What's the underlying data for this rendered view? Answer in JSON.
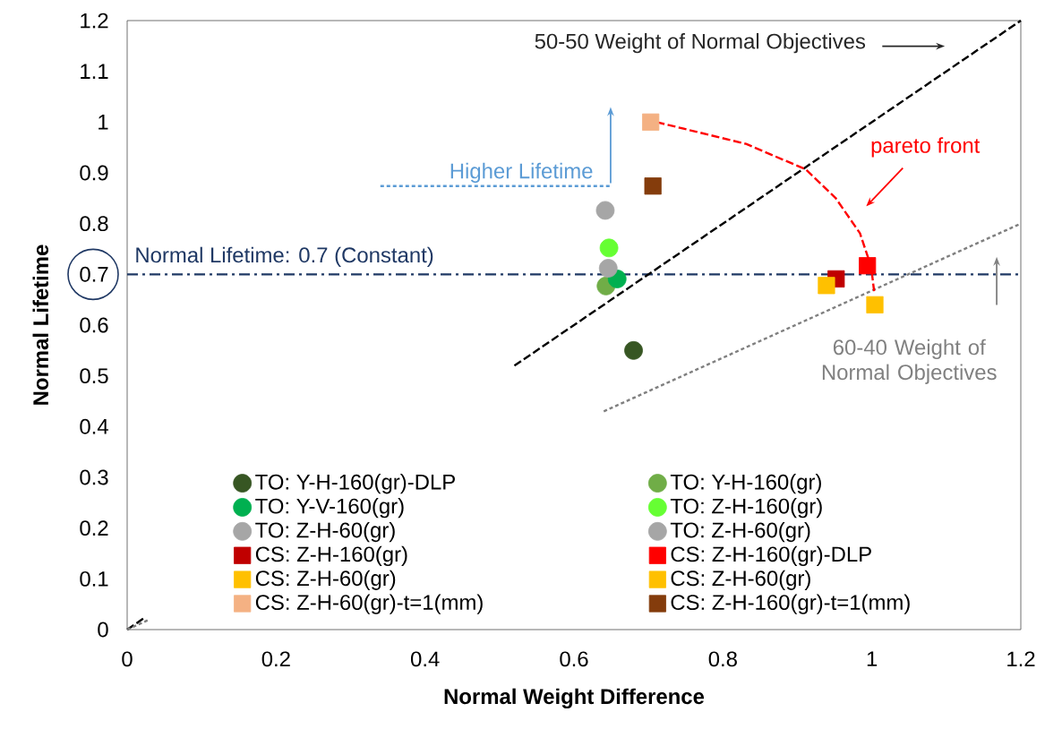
{
  "chart_data": {
    "type": "scatter",
    "xlabel": "Normal Weight Difference",
    "ylabel": "Normal Lifetime",
    "xlim": [
      0,
      1.2
    ],
    "ylim": [
      0,
      1.2
    ],
    "xticks": [
      0,
      0.2,
      0.4,
      0.6,
      0.8,
      1,
      1.2
    ],
    "yticks": [
      0,
      0.1,
      0.2,
      0.3,
      0.4,
      0.5,
      0.6,
      0.7,
      0.8,
      0.9,
      1,
      1.1,
      1.2
    ],
    "legend": "bottom",
    "series": [
      {
        "name": "TO: Y-H-160(gr)-DLP",
        "color": "#375623",
        "marker": "circle",
        "x": [
          0.68
        ],
        "values": [
          0.55
        ]
      },
      {
        "name": "TO: Y-H-160(gr)",
        "color": "#70ad47",
        "marker": "circle",
        "x": [
          0.643
        ],
        "values": [
          0.677
        ]
      },
      {
        "name": "TO: Y-V-160(gr)",
        "color": "#00b050",
        "marker": "circle",
        "x": [
          0.658
        ],
        "values": [
          0.691
        ]
      },
      {
        "name": "TO: Z-H-160(gr)",
        "color": "#66ff33",
        "marker": "circle",
        "x": [
          0.647
        ],
        "values": [
          0.752
        ]
      },
      {
        "name": "TO: Z-H-60(gr)",
        "color": "#a6a6a6",
        "marker": "circle",
        "x": [
          0.642
        ],
        "values": [
          0.826
        ]
      },
      {
        "name": "TO: Z-H-60(gr)",
        "color": "#a6a6a6",
        "marker": "circle",
        "x": [
          0.646
        ],
        "values": [
          0.712
        ]
      },
      {
        "name": "CS: Z-H-160(gr)",
        "color": "#c00000",
        "marker": "square",
        "x": [
          0.952
        ],
        "values": [
          0.691
        ]
      },
      {
        "name": "CS: Z-H-160(gr)-DLP",
        "color": "#ff0000",
        "marker": "square",
        "x": [
          0.994
        ],
        "values": [
          0.717
        ]
      },
      {
        "name": "CS: Z-H-60(gr)",
        "color": "#ffc000",
        "marker": "square",
        "x": [
          0.939
        ],
        "values": [
          0.678
        ]
      },
      {
        "name": "CS: Z-H-60(gr)",
        "color": "#ffc000",
        "marker": "square",
        "x": [
          1.004
        ],
        "values": [
          0.64
        ]
      },
      {
        "name": "CS: Z-H-60(gr)-t=1(mm)",
        "color": "#f4b183",
        "marker": "square",
        "x": [
          0.703
        ],
        "values": [
          1.0
        ]
      },
      {
        "name": "CS: Z-H-160(gr)-t=1(mm)",
        "color": "#843c0c",
        "marker": "square",
        "x": [
          0.706
        ],
        "values": [
          0.874
        ]
      },
      {
        "type": "line",
        "color": "#000000",
        "line_style": "dashed",
        "marker": "none",
        "x": [
          0,
          0.025,
          0.3,
          0.52,
          1.2
        ],
        "values": [
          0,
          0.025,
          null,
          0.52,
          1.2
        ]
      },
      {
        "type": "line",
        "color": "#7f7f7f",
        "line_style": "dotted",
        "marker": "none",
        "x": [
          0,
          0.03,
          0.3,
          0.64,
          1.2
        ],
        "values": [
          0,
          0.02,
          null,
          0.43,
          0.8
        ]
      },
      {
        "type": "line",
        "color": "#ff0000",
        "line_style": "dashed",
        "marker": "none",
        "x": [
          0.711,
          0.831,
          0.911,
          0.951,
          0.984,
          0.999,
          1.003
        ],
        "values": [
          1.0,
          0.957,
          0.907,
          0.851,
          0.781,
          0.715,
          0.667
        ]
      },
      {
        "type": "line",
        "color": "#5b9bd5",
        "line_style": "dotted",
        "marker": "none",
        "x": [
          0.34,
          0.65
        ],
        "values": [
          0.874,
          0.874
        ]
      }
    ],
    "ref_lines": [
      {
        "axis": "y",
        "value": 0.7,
        "label": "Normal Lifetime: 0.7 (Constant)",
        "color": "#1f3864",
        "line_style": "dashdot"
      }
    ],
    "annotations": [
      "50-50 Weight of Normal Objectives",
      "pareto front",
      "Higher Lifetime",
      "60-40 Weight of Normal Objectives"
    ]
  }
}
